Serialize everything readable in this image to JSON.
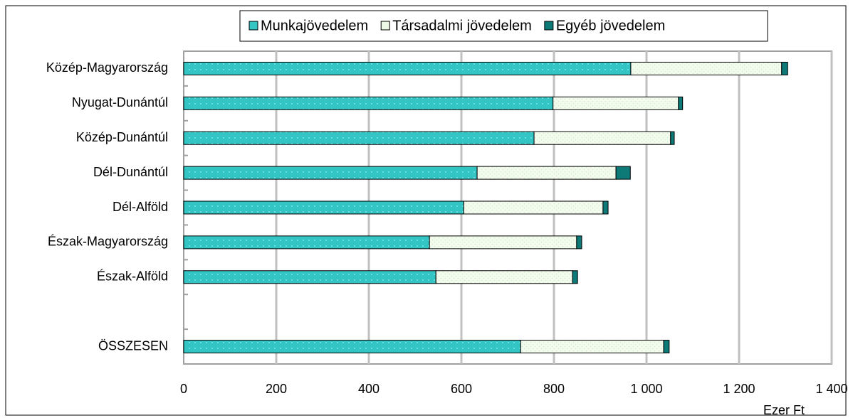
{
  "chart_data": {
    "type": "stacked-bar-horizontal",
    "categories": [
      "Közép-Magyarország",
      "Nyugat-Dunántúl",
      "Közép-Dunántúl",
      "Dél-Dunántúl",
      "Dél-Alföld",
      "Észak-Magyarország",
      "Észak-Alföld",
      null,
      "ÖSSZESEN"
    ],
    "series": [
      {
        "name": "Munkajövedelem",
        "color": "#33c4c4",
        "values": [
          966,
          798,
          757,
          634,
          605,
          531,
          545,
          null,
          728
        ]
      },
      {
        "name": "Társadalmi jövedelem",
        "color": "#eef8e6",
        "values": [
          326,
          271,
          295,
          300,
          301,
          318,
          295,
          null,
          309
        ]
      },
      {
        "name": "Egyéb jövedelem",
        "color": "#0e7a78",
        "values": [
          13,
          9,
          8,
          31,
          11,
          11,
          11,
          null,
          12
        ]
      }
    ],
    "xlim": [
      0,
      1400
    ],
    "xticks": [
      0,
      200,
      400,
      600,
      800,
      {
        "value": 1000,
        "label": "1 000"
      },
      {
        "value": 1200,
        "label": "1 200"
      },
      {
        "value": 1400,
        "label": "1 400"
      }
    ],
    "xlabel": "Ezer Ft",
    "grid": true,
    "legend": "top"
  }
}
